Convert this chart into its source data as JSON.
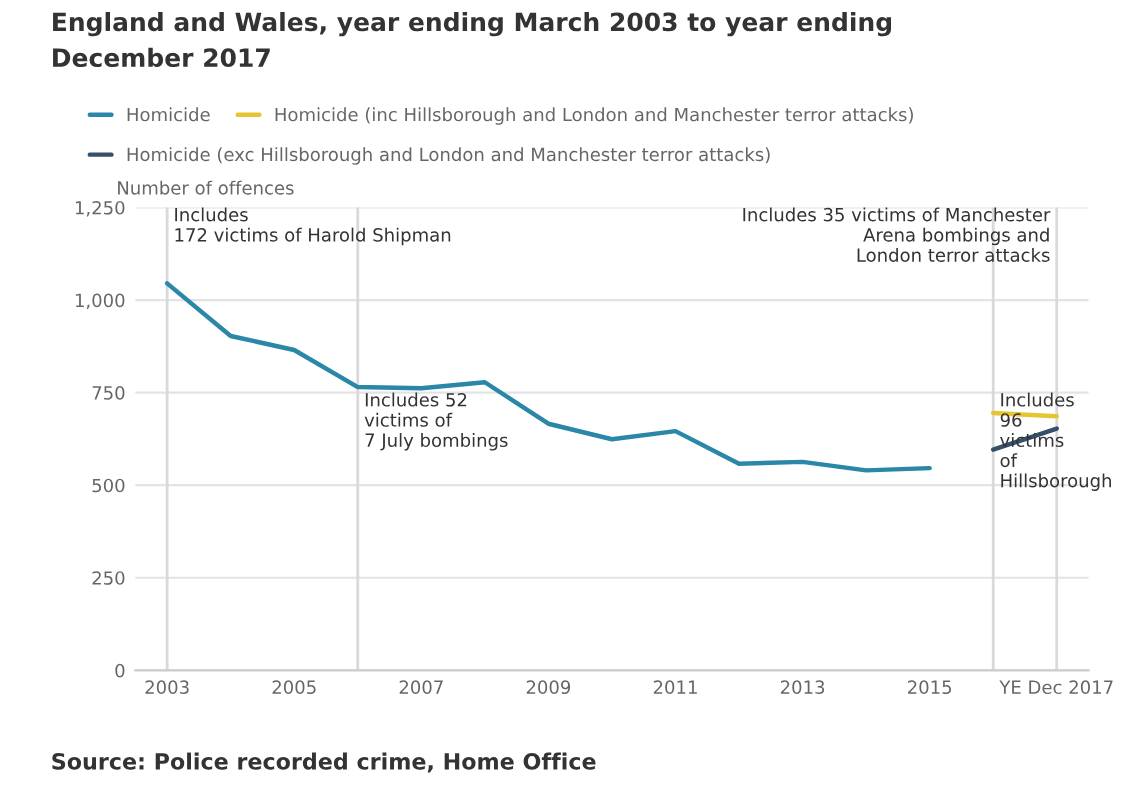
{
  "chart_data": {
    "type": "line",
    "title": "England and Wales, year ending March 2003 to year ending\nDecember 2017",
    "ylabel": "Number of offences",
    "x": [
      2003,
      2004,
      2005,
      2006,
      2007,
      2008,
      2009,
      2010,
      2011,
      2012,
      2013,
      2014,
      2015,
      2016,
      2017
    ],
    "series": [
      {
        "name": "Homicide",
        "color": "#2a87a8",
        "values": [
          1045,
          903,
          865,
          765,
          762,
          778,
          666,
          624,
          646,
          558,
          563,
          540,
          546,
          null,
          null
        ]
      },
      {
        "name": "Homicide (inc Hillsborough and London and Manchester terror attacks)",
        "color": "#e6c532",
        "values": [
          null,
          null,
          null,
          null,
          null,
          null,
          null,
          null,
          null,
          null,
          null,
          null,
          null,
          695,
          686
        ]
      },
      {
        "name": "Homicide (exc Hillsborough and London and Manchester terror attacks)",
        "color": "#34506b",
        "values": [
          null,
          null,
          null,
          null,
          null,
          null,
          null,
          null,
          null,
          null,
          null,
          null,
          null,
          596,
          653
        ]
      }
    ],
    "xlim": [
      2002.5,
      2017.5
    ],
    "xticks": [
      2003,
      2005,
      2007,
      2009,
      2011,
      2013,
      2015,
      {
        "value": 2017,
        "label": "YE Dec 2017"
      }
    ],
    "ylim": [
      0,
      1250
    ],
    "yticks": [
      0,
      {
        "value": 250,
        "label": "250"
      },
      {
        "value": 500,
        "label": "500"
      },
      {
        "value": 750,
        "label": "750"
      },
      {
        "value": 1000,
        "label": "1,000"
      },
      {
        "value": 1250,
        "label": "1,250"
      }
    ],
    "grid": "y",
    "legend": "top",
    "marker": "none",
    "line_style": "solid",
    "ref_lines": [
      {
        "axis": "x",
        "value": 2003,
        "label": "Includes\n172 victims of Harold Shipman",
        "color": "#d9d9d9"
      },
      {
        "axis": "x",
        "value": 2006,
        "label": "Includes 52\nvictims of\n7 July bombings",
        "color": "#d9d9d9"
      },
      {
        "axis": "x",
        "value": 2017,
        "label": "Includes 35 victims of Manchester\nArena bombings and\nLondon terror attacks",
        "color": "#d9d9d9"
      },
      {
        "axis": "x",
        "value": 2016,
        "label": "Includes\n96\nvictims\nof\nHillsborough",
        "color": "#d9d9d9"
      }
    ],
    "annotations": [
      "Source: Police recorded crime, Home Office"
    ]
  }
}
